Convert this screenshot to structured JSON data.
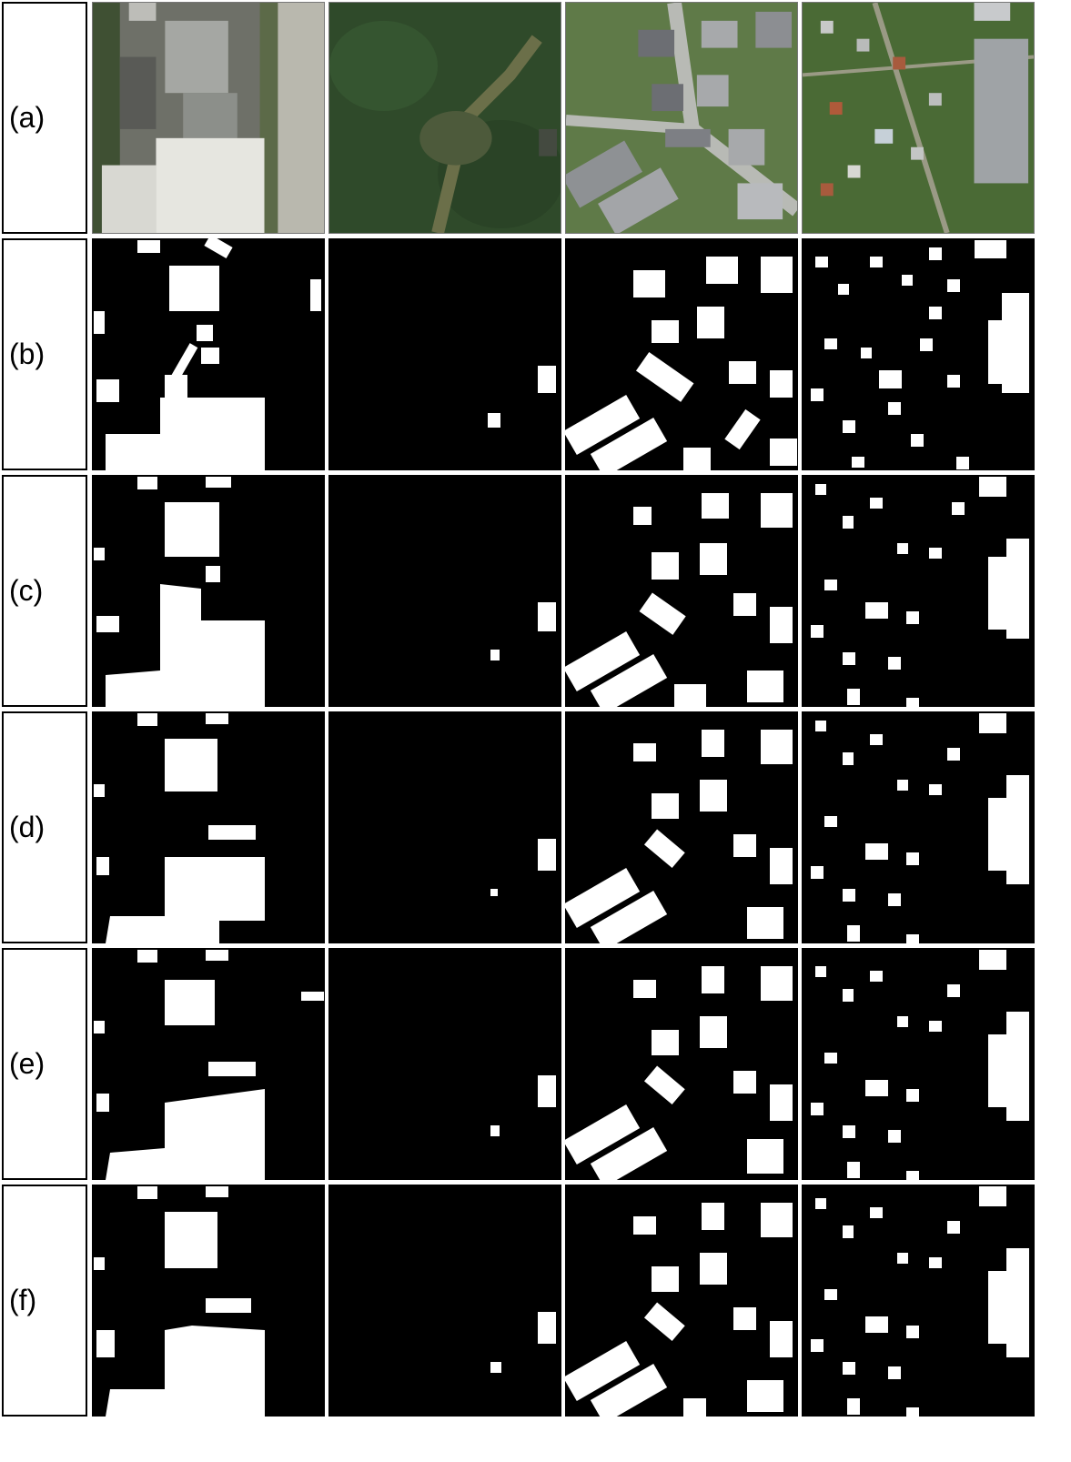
{
  "figure": {
    "row_labels": [
      "(a)",
      "(b)",
      "(c)",
      "(d)",
      "(e)",
      "(f)"
    ],
    "row_types": [
      "aerial-image",
      "ground-truth-mask",
      "prediction-mask",
      "prediction-mask",
      "prediction-mask",
      "prediction-mask"
    ],
    "columns": [
      {
        "scene": "industrial"
      },
      {
        "scene": "forest"
      },
      {
        "scene": "residential-dense"
      },
      {
        "scene": "residential-suburban"
      }
    ],
    "colors": {
      "mask_background": "#000000",
      "mask_foreground": "#ffffff",
      "separator": "#ffffff",
      "label_border": "#000000"
    }
  }
}
